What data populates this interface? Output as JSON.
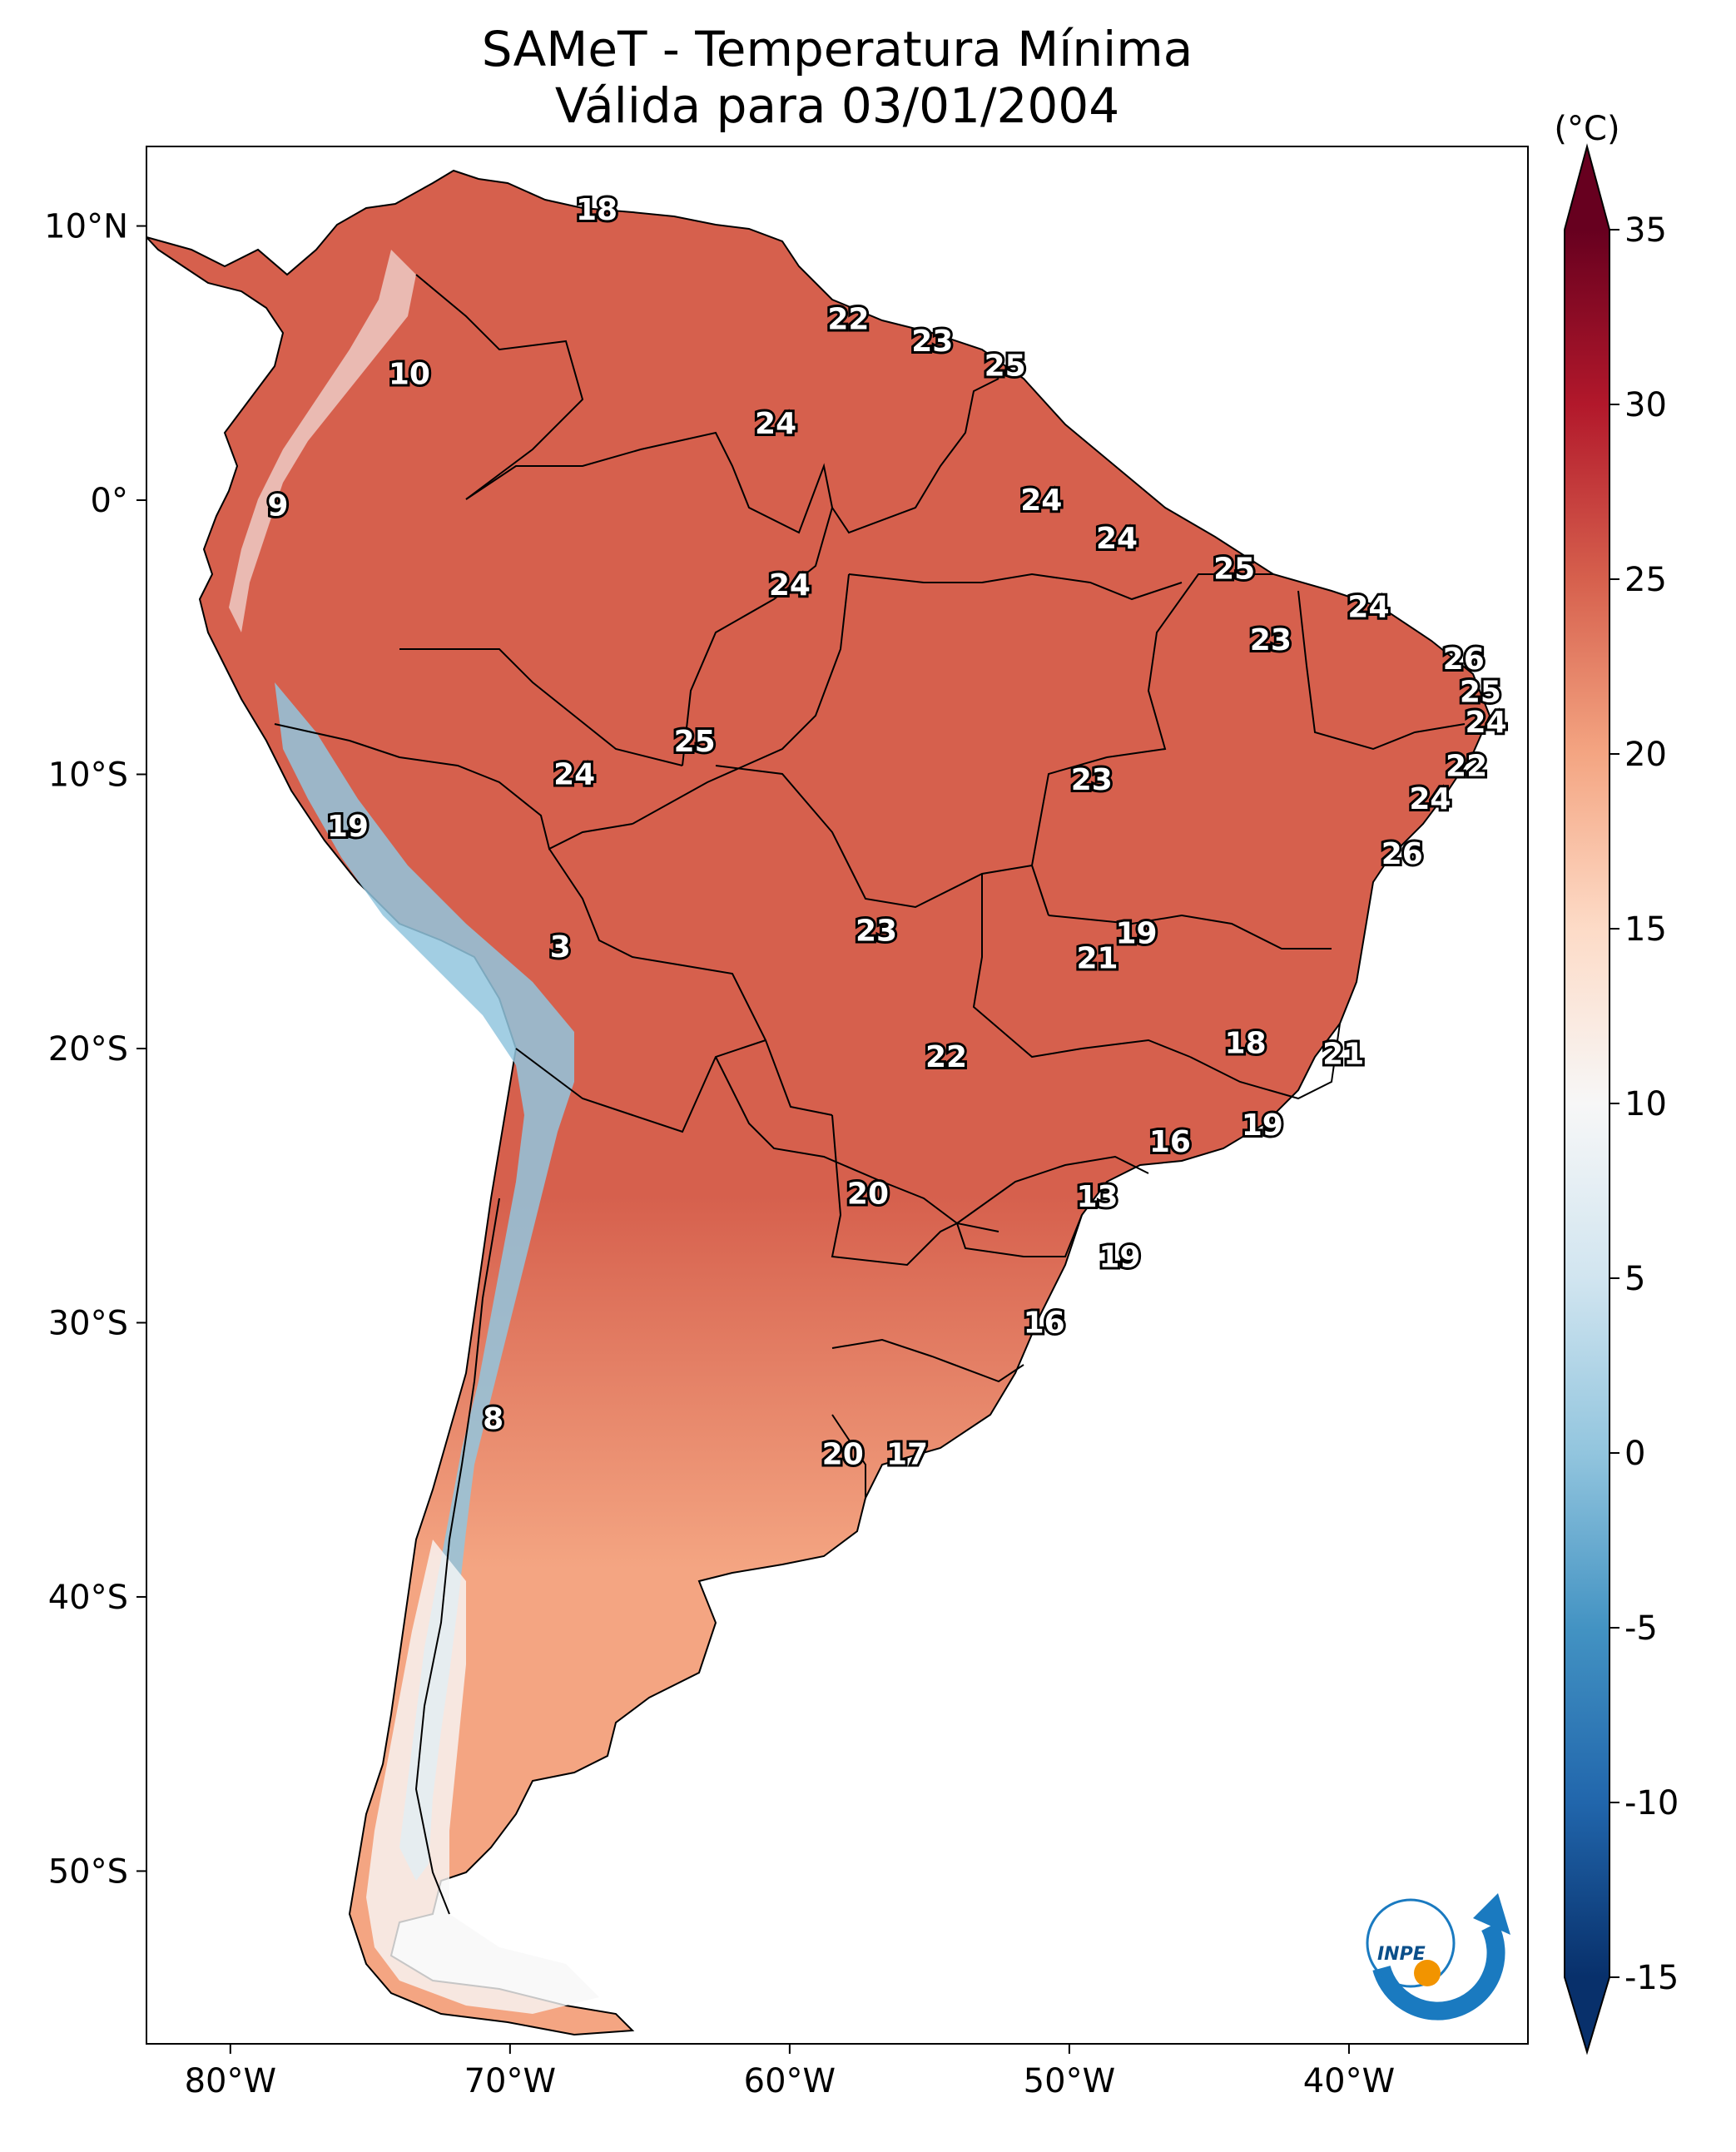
{
  "title": "SAMeT - Temperatura Mínima",
  "subtitle": "Válida para 03/01/2004",
  "colorbar": {
    "unit": "(°C)",
    "ticks": [
      "35",
      "30",
      "25",
      "20",
      "15",
      "10",
      "5",
      "0",
      "-5",
      "-10",
      "-15"
    ],
    "range": [
      -15,
      35
    ],
    "colors": [
      "#08306b",
      "#2166ac",
      "#4393c3",
      "#92c5de",
      "#d1e5f0",
      "#f7f7f7",
      "#fddbc7",
      "#f4a582",
      "#d6604d",
      "#b2182b",
      "#67001f"
    ]
  },
  "axes": {
    "lon_ticks": [
      "80°W",
      "70°W",
      "60°W",
      "50°W",
      "40°W"
    ],
    "lat_ticks": [
      "10°N",
      "0°",
      "10°S",
      "20°S",
      "30°S",
      "40°S",
      "50°S"
    ]
  },
  "map": {
    "ocean_color": "#ffffff",
    "north_color": "#d6604d",
    "south_color": "#f4a582",
    "andes_color": "#92c5de",
    "patagonia_color": "#f7f7f7"
  },
  "contour_labels": [
    {
      "text": "18",
      "lon": -66.9,
      "lat": 10.6
    },
    {
      "text": "22",
      "lon": -57.9,
      "lat": 6.6
    },
    {
      "text": "23",
      "lon": -54.9,
      "lat": 5.8
    },
    {
      "text": "25",
      "lon": -52.3,
      "lat": 4.9
    },
    {
      "text": "10",
      "lon": -73.6,
      "lat": 4.6
    },
    {
      "text": "24",
      "lon": -60.5,
      "lat": 2.8
    },
    {
      "text": "24",
      "lon": -51.0,
      "lat": 0.0
    },
    {
      "text": "9",
      "lon": -78.3,
      "lat": -0.2
    },
    {
      "text": "24",
      "lon": -48.3,
      "lat": -1.4
    },
    {
      "text": "25",
      "lon": -44.1,
      "lat": -2.5
    },
    {
      "text": "24",
      "lon": -60.0,
      "lat": -3.1
    },
    {
      "text": "24",
      "lon": -39.3,
      "lat": -3.9
    },
    {
      "text": "23",
      "lon": -42.8,
      "lat": -5.1
    },
    {
      "text": "26",
      "lon": -35.9,
      "lat": -5.8
    },
    {
      "text": "25",
      "lon": -35.3,
      "lat": -7.0
    },
    {
      "text": "24",
      "lon": -35.1,
      "lat": -8.1
    },
    {
      "text": "25",
      "lon": -63.4,
      "lat": -8.8
    },
    {
      "text": "22",
      "lon": -35.8,
      "lat": -9.7
    },
    {
      "text": "24",
      "lon": -67.7,
      "lat": -10.0
    },
    {
      "text": "23",
      "lon": -49.2,
      "lat": -10.2
    },
    {
      "text": "24",
      "lon": -37.1,
      "lat": -10.9
    },
    {
      "text": "19",
      "lon": -75.8,
      "lat": -11.9
    },
    {
      "text": "26",
      "lon": -38.1,
      "lat": -12.9
    },
    {
      "text": "19",
      "lon": -47.6,
      "lat": -15.8
    },
    {
      "text": "23",
      "lon": -56.9,
      "lat": -15.7
    },
    {
      "text": "3",
      "lon": -68.2,
      "lat": -16.3
    },
    {
      "text": "21",
      "lon": -49.0,
      "lat": -16.7
    },
    {
      "text": "18",
      "lon": -43.7,
      "lat": -19.8
    },
    {
      "text": "22",
      "lon": -54.4,
      "lat": -20.3
    },
    {
      "text": "21",
      "lon": -40.2,
      "lat": -20.2
    },
    {
      "text": "19",
      "lon": -43.1,
      "lat": -22.8
    },
    {
      "text": "16",
      "lon": -46.4,
      "lat": -23.4
    },
    {
      "text": "20",
      "lon": -57.2,
      "lat": -25.3
    },
    {
      "text": "13",
      "lon": -49.0,
      "lat": -25.4
    },
    {
      "text": "19",
      "lon": -48.2,
      "lat": -27.6
    },
    {
      "text": "16",
      "lon": -50.9,
      "lat": -30.0
    },
    {
      "text": "8",
      "lon": -70.6,
      "lat": -33.5
    },
    {
      "text": "20",
      "lon": -58.1,
      "lat": -34.8
    },
    {
      "text": "17",
      "lon": -55.8,
      "lat": -34.8
    }
  ],
  "logo": {
    "text": "INPE"
  }
}
